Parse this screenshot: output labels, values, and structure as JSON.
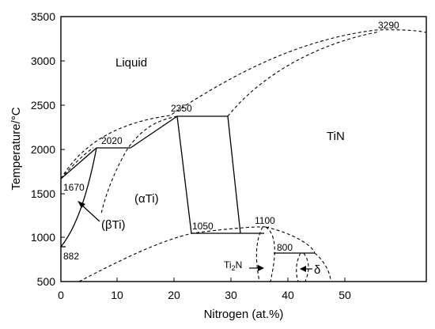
{
  "chart_data": {
    "type": "phase-diagram",
    "xlabel": "Nitrogen (at.%)",
    "ylabel": "Temperature/°C",
    "xlim": [
      0,
      51
    ],
    "ylim": [
      500,
      3500
    ],
    "x_ticks": [
      "0",
      "10",
      "20",
      "30",
      "40",
      "50"
    ],
    "y_ticks": [
      "500",
      "1000",
      "1500",
      "2000",
      "2500",
      "3000",
      "3500"
    ],
    "regions": {
      "liquid": "Liquid",
      "tin": "TiN",
      "alpha_ti": "(αTi)",
      "beta_ti": "(βTi)",
      "ti2n_label": "Ti",
      "ti2n_sub": "2",
      "ti2n_tail": "N",
      "delta": "δ"
    },
    "invariant_points": [
      {
        "label": "882",
        "x": 0,
        "y": 882
      },
      {
        "label": "1670",
        "x": 0,
        "y": 1670
      },
      {
        "label": "2020",
        "x": 6.5,
        "y": 2020
      },
      {
        "label": "2350",
        "x": 20.5,
        "y": 2350
      },
      {
        "label": "1050",
        "x": 22.5,
        "y": 1050
      },
      {
        "label": "1100",
        "x": 33.0,
        "y": 1100
      },
      {
        "label": "800",
        "x": 37.0,
        "y": 800
      },
      {
        "label": "3290",
        "x": 46.5,
        "y": 3290
      }
    ]
  }
}
